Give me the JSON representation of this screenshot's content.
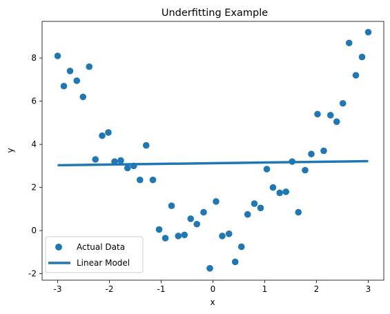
{
  "chart_data": {
    "type": "scatter",
    "title": "Underfitting Example",
    "xlabel": "x",
    "ylabel": "y",
    "xlim": [
      -3.3,
      3.3
    ],
    "ylim": [
      -2.3,
      9.7
    ],
    "xticks": [
      "-3",
      "-2",
      "-1",
      "0",
      "1",
      "2",
      "3"
    ],
    "yticks": [
      "-2",
      "0",
      "2",
      "4",
      "6",
      "8"
    ],
    "grid": false,
    "legend_placement": "lower-left",
    "colors": {
      "points": "#1f77b4",
      "line": "#1f77b4"
    },
    "series": [
      {
        "name": "Actual Data",
        "kind": "scatter",
        "x": [
          -3.0,
          -2.88,
          -2.76,
          -2.63,
          -2.51,
          -2.39,
          -2.27,
          -2.14,
          -2.02,
          -1.9,
          -1.78,
          -1.65,
          -1.53,
          -1.41,
          -1.29,
          -1.16,
          -1.04,
          -0.92,
          -0.8,
          -0.67,
          -0.55,
          -0.43,
          -0.31,
          -0.18,
          -0.06,
          0.06,
          0.18,
          0.31,
          0.43,
          0.55,
          0.67,
          0.8,
          0.92,
          1.04,
          1.16,
          1.29,
          1.41,
          1.53,
          1.65,
          1.78,
          1.9,
          2.02,
          2.14,
          2.27,
          2.39,
          2.51,
          2.63,
          2.76,
          2.88,
          3.0
        ],
        "y": [
          8.1,
          6.7,
          7.4,
          6.95,
          6.2,
          7.6,
          3.3,
          4.4,
          4.55,
          3.2,
          3.25,
          2.9,
          3.0,
          2.35,
          3.95,
          2.35,
          0.05,
          -0.35,
          1.15,
          -0.25,
          -0.2,
          0.55,
          0.3,
          0.85,
          -1.75,
          1.35,
          -0.25,
          -0.15,
          -1.45,
          -0.75,
          0.75,
          1.25,
          1.05,
          2.85,
          2.0,
          1.75,
          1.8,
          3.2,
          0.85,
          2.8,
          3.55,
          5.4,
          3.7,
          5.35,
          5.05,
          5.9,
          8.7,
          7.2,
          8.05,
          9.2
        ]
      },
      {
        "name": "Linear Model",
        "kind": "line",
        "x": [
          -3.0,
          3.0
        ],
        "y": [
          3.03,
          3.22
        ]
      }
    ]
  }
}
